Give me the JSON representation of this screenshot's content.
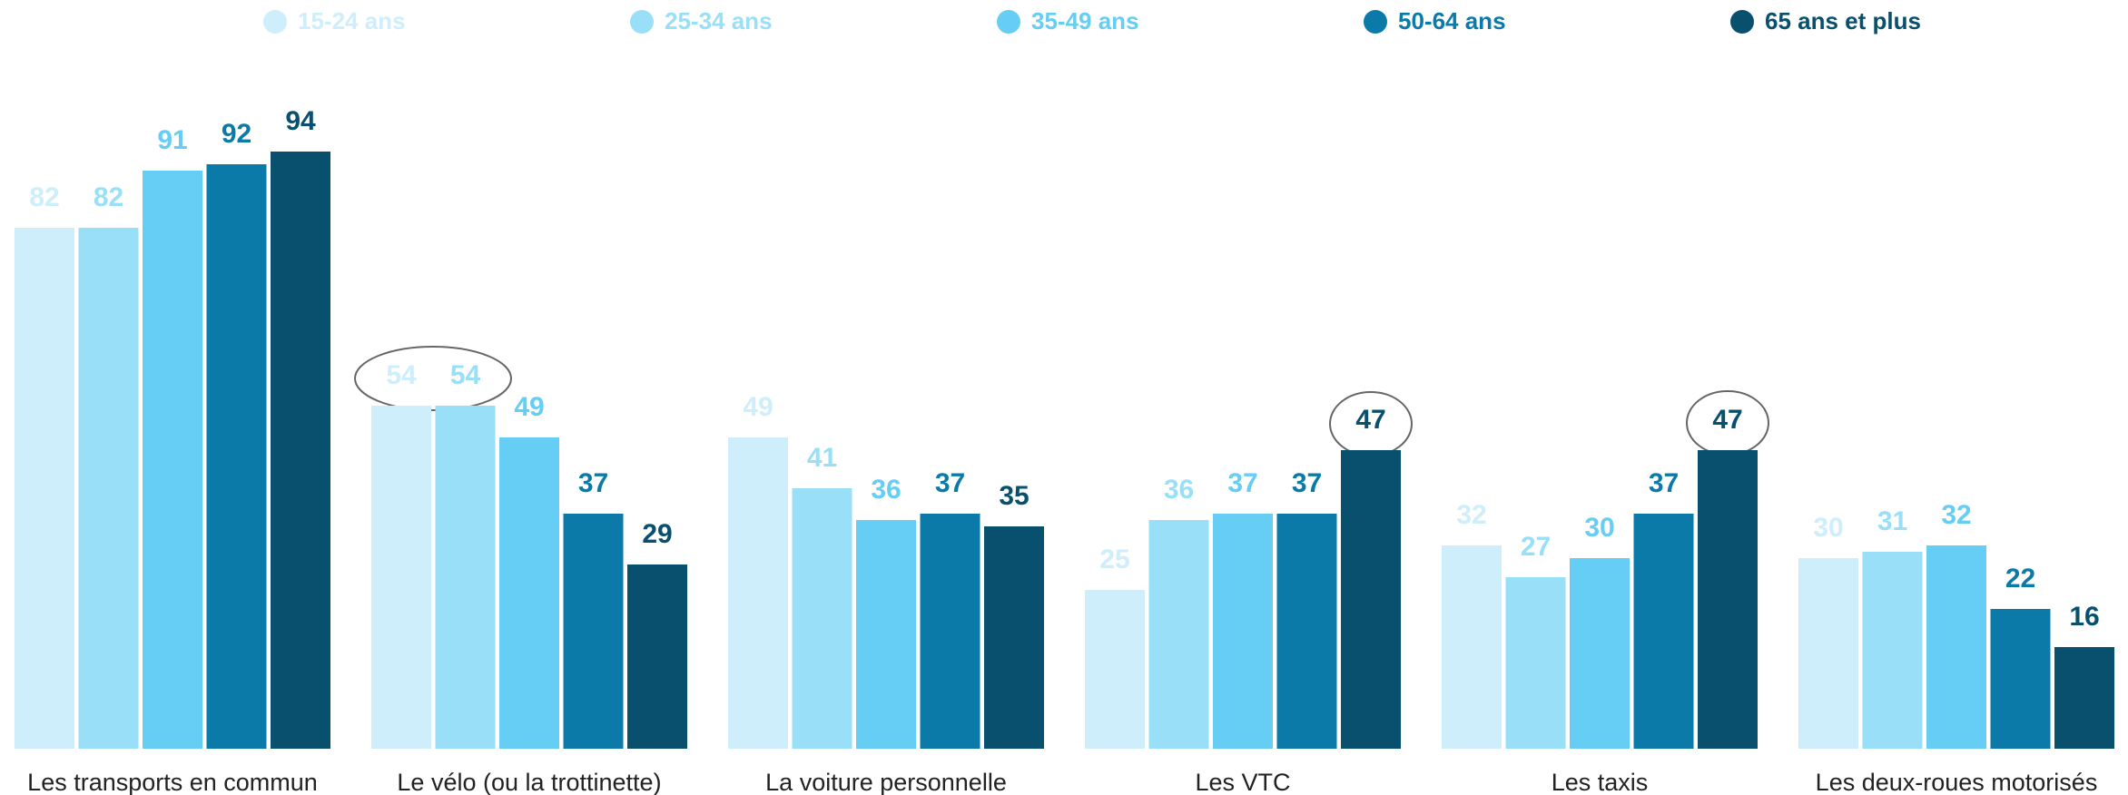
{
  "chart_data": {
    "type": "bar",
    "categories": [
      "Les transports en commun",
      "Le vélo (ou la trottinette)",
      "La voiture personnelle",
      "Les VTC",
      "Les taxis",
      "Les deux-roues motorisés"
    ],
    "series": [
      {
        "name": "15-24 ans",
        "color": "#cdeefa",
        "values": [
          82,
          54,
          49,
          25,
          32,
          30
        ]
      },
      {
        "name": "25-34 ans",
        "color": "#9adff8",
        "values": [
          82,
          54,
          41,
          36,
          27,
          31
        ]
      },
      {
        "name": "35-49 ans",
        "color": "#66cdf4",
        "values": [
          91,
          49,
          36,
          37,
          30,
          32
        ]
      },
      {
        "name": "50-64 ans",
        "color": "#0c7aa8",
        "values": [
          92,
          37,
          37,
          37,
          37,
          22
        ]
      },
      {
        "name": "65 ans et plus",
        "color": "#08506d",
        "values": [
          94,
          29,
          35,
          47,
          47,
          16
        ]
      }
    ],
    "ylim": [
      0,
      100
    ]
  }
}
